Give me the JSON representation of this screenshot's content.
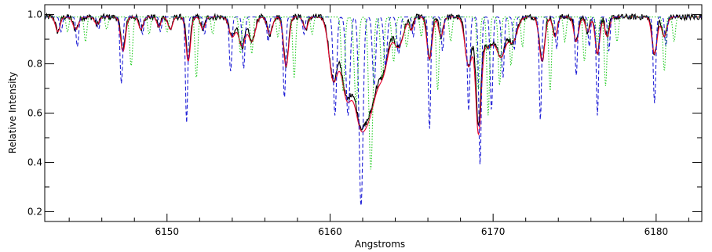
{
  "chart_data": {
    "type": "line",
    "xlabel": "Angstroms",
    "ylabel": "Relative Intensity",
    "xlim": [
      6142.5,
      6182.8
    ],
    "ylim": [
      0.16,
      1.04
    ],
    "xticks": [
      6150,
      6160,
      6170,
      6180
    ],
    "yticks": [
      0.2,
      0.4,
      0.6,
      0.8,
      1.0
    ],
    "x_minor_step": 2,
    "y_minor_step": 0.1,
    "grid": false,
    "legend": "none",
    "continuum": 0.99,
    "observed_noise": 0.012,
    "series": [
      {
        "color": "#000000",
        "style": "solid",
        "lines": [
          [
            6143.3,
            0.06,
            0.12
          ],
          [
            6144.4,
            0.05,
            0.15
          ],
          [
            6145.7,
            0.03,
            0.12
          ],
          [
            6147.3,
            0.13,
            0.14
          ],
          [
            6148.4,
            0.05,
            0.12
          ],
          [
            6149.5,
            0.04,
            0.1
          ],
          [
            6150.2,
            0.05,
            0.12
          ],
          [
            6151.3,
            0.18,
            0.12
          ],
          [
            6152.2,
            0.05,
            0.12
          ],
          [
            6154.0,
            0.08,
            0.18
          ],
          [
            6154.6,
            0.12,
            0.18
          ],
          [
            6155.2,
            0.1,
            0.18
          ],
          [
            6156.3,
            0.07,
            0.14
          ],
          [
            6157.3,
            0.2,
            0.14
          ],
          [
            6158.5,
            0.05,
            0.12
          ],
          [
            6160.2,
            0.25,
            0.25
          ],
          [
            6161.0,
            0.3,
            0.3
          ],
          [
            6161.8,
            0.35,
            0.35
          ],
          [
            6162.5,
            0.33,
            0.4
          ],
          [
            6163.3,
            0.18,
            0.3
          ],
          [
            6164.2,
            0.12,
            0.28
          ],
          [
            6165.0,
            0.05,
            0.1
          ],
          [
            6166.1,
            0.17,
            0.14
          ],
          [
            6166.8,
            0.08,
            0.12
          ],
          [
            6168.5,
            0.2,
            0.2
          ],
          [
            6169.1,
            0.42,
            0.15
          ],
          [
            6169.7,
            0.12,
            0.35
          ],
          [
            6170.5,
            0.15,
            0.25
          ],
          [
            6171.2,
            0.1,
            0.25
          ],
          [
            6173.0,
            0.18,
            0.15
          ],
          [
            6173.8,
            0.08,
            0.12
          ],
          [
            6175.1,
            0.1,
            0.13
          ],
          [
            6175.8,
            0.06,
            0.12
          ],
          [
            6176.4,
            0.15,
            0.12
          ],
          [
            6177.0,
            0.08,
            0.12
          ],
          [
            6179.9,
            0.15,
            0.14
          ],
          [
            6180.5,
            0.08,
            0.14
          ]
        ]
      },
      {
        "color": "#e8002a",
        "style": "solid",
        "lines": [
          [
            6143.3,
            0.06,
            0.14
          ],
          [
            6144.4,
            0.05,
            0.17
          ],
          [
            6145.7,
            0.03,
            0.14
          ],
          [
            6147.3,
            0.14,
            0.15
          ],
          [
            6148.4,
            0.05,
            0.14
          ],
          [
            6149.5,
            0.04,
            0.12
          ],
          [
            6150.2,
            0.05,
            0.14
          ],
          [
            6151.3,
            0.18,
            0.14
          ],
          [
            6152.2,
            0.05,
            0.14
          ],
          [
            6154.0,
            0.08,
            0.2
          ],
          [
            6154.6,
            0.12,
            0.2
          ],
          [
            6155.2,
            0.1,
            0.2
          ],
          [
            6156.3,
            0.07,
            0.16
          ],
          [
            6157.3,
            0.2,
            0.16
          ],
          [
            6158.5,
            0.05,
            0.14
          ],
          [
            6160.2,
            0.25,
            0.27
          ],
          [
            6161.0,
            0.3,
            0.32
          ],
          [
            6161.8,
            0.35,
            0.37
          ],
          [
            6162.5,
            0.33,
            0.42
          ],
          [
            6163.3,
            0.18,
            0.32
          ],
          [
            6164.2,
            0.12,
            0.3
          ],
          [
            6165.0,
            0.05,
            0.12
          ],
          [
            6166.1,
            0.17,
            0.16
          ],
          [
            6166.8,
            0.08,
            0.14
          ],
          [
            6168.5,
            0.2,
            0.22
          ],
          [
            6169.1,
            0.44,
            0.17
          ],
          [
            6169.7,
            0.12,
            0.37
          ],
          [
            6170.5,
            0.15,
            0.27
          ],
          [
            6171.2,
            0.1,
            0.27
          ],
          [
            6173.0,
            0.18,
            0.17
          ],
          [
            6173.8,
            0.08,
            0.14
          ],
          [
            6175.1,
            0.1,
            0.15
          ],
          [
            6175.8,
            0.06,
            0.14
          ],
          [
            6176.4,
            0.15,
            0.14
          ],
          [
            6177.0,
            0.08,
            0.14
          ],
          [
            6179.9,
            0.15,
            0.16
          ],
          [
            6180.5,
            0.08,
            0.16
          ]
        ]
      },
      {
        "color": "#1f1fd6",
        "style": "dashed",
        "lines": [
          [
            6143.5,
            0.06,
            0.08
          ],
          [
            6144.5,
            0.12,
            0.08
          ],
          [
            6145.8,
            0.05,
            0.08
          ],
          [
            6147.2,
            0.27,
            0.08
          ],
          [
            6148.5,
            0.07,
            0.07
          ],
          [
            6149.6,
            0.06,
            0.07
          ],
          [
            6151.2,
            0.43,
            0.07
          ],
          [
            6152.3,
            0.07,
            0.07
          ],
          [
            6153.9,
            0.22,
            0.08
          ],
          [
            6154.7,
            0.21,
            0.08
          ],
          [
            6156.2,
            0.1,
            0.07
          ],
          [
            6157.2,
            0.33,
            0.08
          ],
          [
            6158.4,
            0.07,
            0.07
          ],
          [
            6160.3,
            0.4,
            0.1
          ],
          [
            6161.1,
            0.4,
            0.12
          ],
          [
            6161.9,
            0.77,
            0.12
          ],
          [
            6162.7,
            0.28,
            0.1
          ],
          [
            6163.4,
            0.2,
            0.1
          ],
          [
            6164.2,
            0.15,
            0.1
          ],
          [
            6165.1,
            0.08,
            0.07
          ],
          [
            6166.1,
            0.46,
            0.07
          ],
          [
            6166.9,
            0.14,
            0.07
          ],
          [
            6168.5,
            0.38,
            0.08
          ],
          [
            6169.2,
            0.6,
            0.08
          ],
          [
            6169.9,
            0.38,
            0.08
          ],
          [
            6170.6,
            0.25,
            0.08
          ],
          [
            6171.3,
            0.13,
            0.08
          ],
          [
            6172.9,
            0.42,
            0.07
          ],
          [
            6173.9,
            0.13,
            0.07
          ],
          [
            6175.1,
            0.24,
            0.07
          ],
          [
            6175.9,
            0.12,
            0.07
          ],
          [
            6176.4,
            0.4,
            0.07
          ],
          [
            6177.1,
            0.14,
            0.07
          ],
          [
            6179.9,
            0.35,
            0.08
          ],
          [
            6180.6,
            0.12,
            0.07
          ]
        ]
      },
      {
        "color": "#22cc22",
        "style": "dotted",
        "lines": [
          [
            6143.9,
            0.06,
            0.08
          ],
          [
            6145.0,
            0.1,
            0.08
          ],
          [
            6146.3,
            0.05,
            0.08
          ],
          [
            6147.8,
            0.2,
            0.09
          ],
          [
            6148.9,
            0.07,
            0.08
          ],
          [
            6150.0,
            0.06,
            0.08
          ],
          [
            6151.8,
            0.25,
            0.08
          ],
          [
            6152.8,
            0.07,
            0.08
          ],
          [
            6154.5,
            0.15,
            0.08
          ],
          [
            6155.2,
            0.15,
            0.08
          ],
          [
            6156.8,
            0.08,
            0.08
          ],
          [
            6157.8,
            0.25,
            0.08
          ],
          [
            6158.9,
            0.07,
            0.08
          ],
          [
            6160.8,
            0.3,
            0.1
          ],
          [
            6161.6,
            0.35,
            0.12
          ],
          [
            6162.5,
            0.62,
            0.12
          ],
          [
            6163.2,
            0.25,
            0.1
          ],
          [
            6163.9,
            0.18,
            0.1
          ],
          [
            6164.7,
            0.12,
            0.1
          ],
          [
            6165.6,
            0.08,
            0.08
          ],
          [
            6166.6,
            0.3,
            0.08
          ],
          [
            6167.4,
            0.1,
            0.08
          ],
          [
            6169.1,
            0.3,
            0.08
          ],
          [
            6169.7,
            0.4,
            0.08
          ],
          [
            6170.4,
            0.28,
            0.08
          ],
          [
            6171.1,
            0.2,
            0.08
          ],
          [
            6171.8,
            0.12,
            0.08
          ],
          [
            6173.5,
            0.3,
            0.08
          ],
          [
            6174.4,
            0.1,
            0.08
          ],
          [
            6175.6,
            0.18,
            0.08
          ],
          [
            6176.4,
            0.1,
            0.08
          ],
          [
            6176.9,
            0.28,
            0.08
          ],
          [
            6177.6,
            0.1,
            0.08
          ],
          [
            6180.5,
            0.22,
            0.08
          ],
          [
            6181.1,
            0.1,
            0.08
          ]
        ]
      }
    ]
  }
}
